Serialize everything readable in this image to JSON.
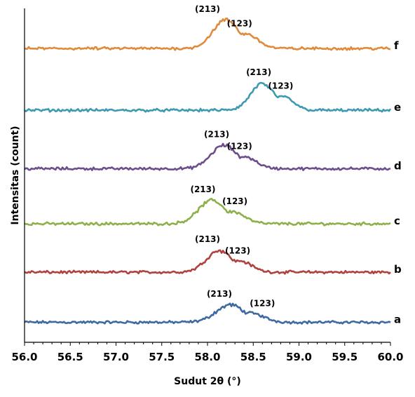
{
  "chart_data": {
    "type": "line",
    "title": "",
    "xlabel": "Sudut 2θ (°)",
    "ylabel": "Intensitas (count)",
    "xlim": [
      56.0,
      60.0
    ],
    "x_ticks": [
      "56.0",
      "56.5",
      "57.0",
      "57.5",
      "58.0",
      "58.5",
      "59.0",
      "59.5",
      "60.0"
    ],
    "grid": false,
    "legend": "none",
    "series": [
      {
        "label": "a",
        "color": "#3f6aa1",
        "baseline": 0.06,
        "peak_center": 58.25,
        "peak_height": 0.052,
        "peak_width": 0.22,
        "annotations": [
          "(213)",
          "(123)"
        ],
        "annotation_x": [
          58.13,
          58.6
        ]
      },
      {
        "label": "b",
        "color": "#b0413e",
        "baseline": 0.21,
        "peak_center": 58.13,
        "peak_height": 0.065,
        "peak_width": 0.2,
        "annotations": [
          "(213)",
          "(123)"
        ],
        "annotation_x": [
          58.0,
          58.33
        ]
      },
      {
        "label": "c",
        "color": "#8eb04a",
        "baseline": 0.355,
        "peak_center": 58.05,
        "peak_height": 0.07,
        "peak_width": 0.21,
        "annotations": [
          "(213)",
          "(123)"
        ],
        "annotation_x": [
          57.95,
          58.3
        ]
      },
      {
        "label": "d",
        "color": "#6e4d8c",
        "baseline": 0.52,
        "peak_center": 58.18,
        "peak_height": 0.07,
        "peak_width": 0.2,
        "annotations": [
          "(213)",
          "(123)"
        ],
        "annotation_x": [
          58.1,
          58.35
        ]
      },
      {
        "label": "e",
        "color": "#3e9ab0",
        "baseline": 0.695,
        "peak_center": 58.6,
        "peak_height": 0.08,
        "peak_width": 0.18,
        "annotations": [
          "(213)",
          "(123)"
        ],
        "annotation_x": [
          58.56,
          58.8
        ]
      },
      {
        "label": "f",
        "color": "#e08a3c",
        "baseline": 0.88,
        "peak_center": 58.2,
        "peak_height": 0.085,
        "peak_width": 0.2,
        "annotations": [
          "(213)",
          "(123)"
        ],
        "annotation_x": [
          58.0,
          58.35
        ]
      }
    ]
  }
}
